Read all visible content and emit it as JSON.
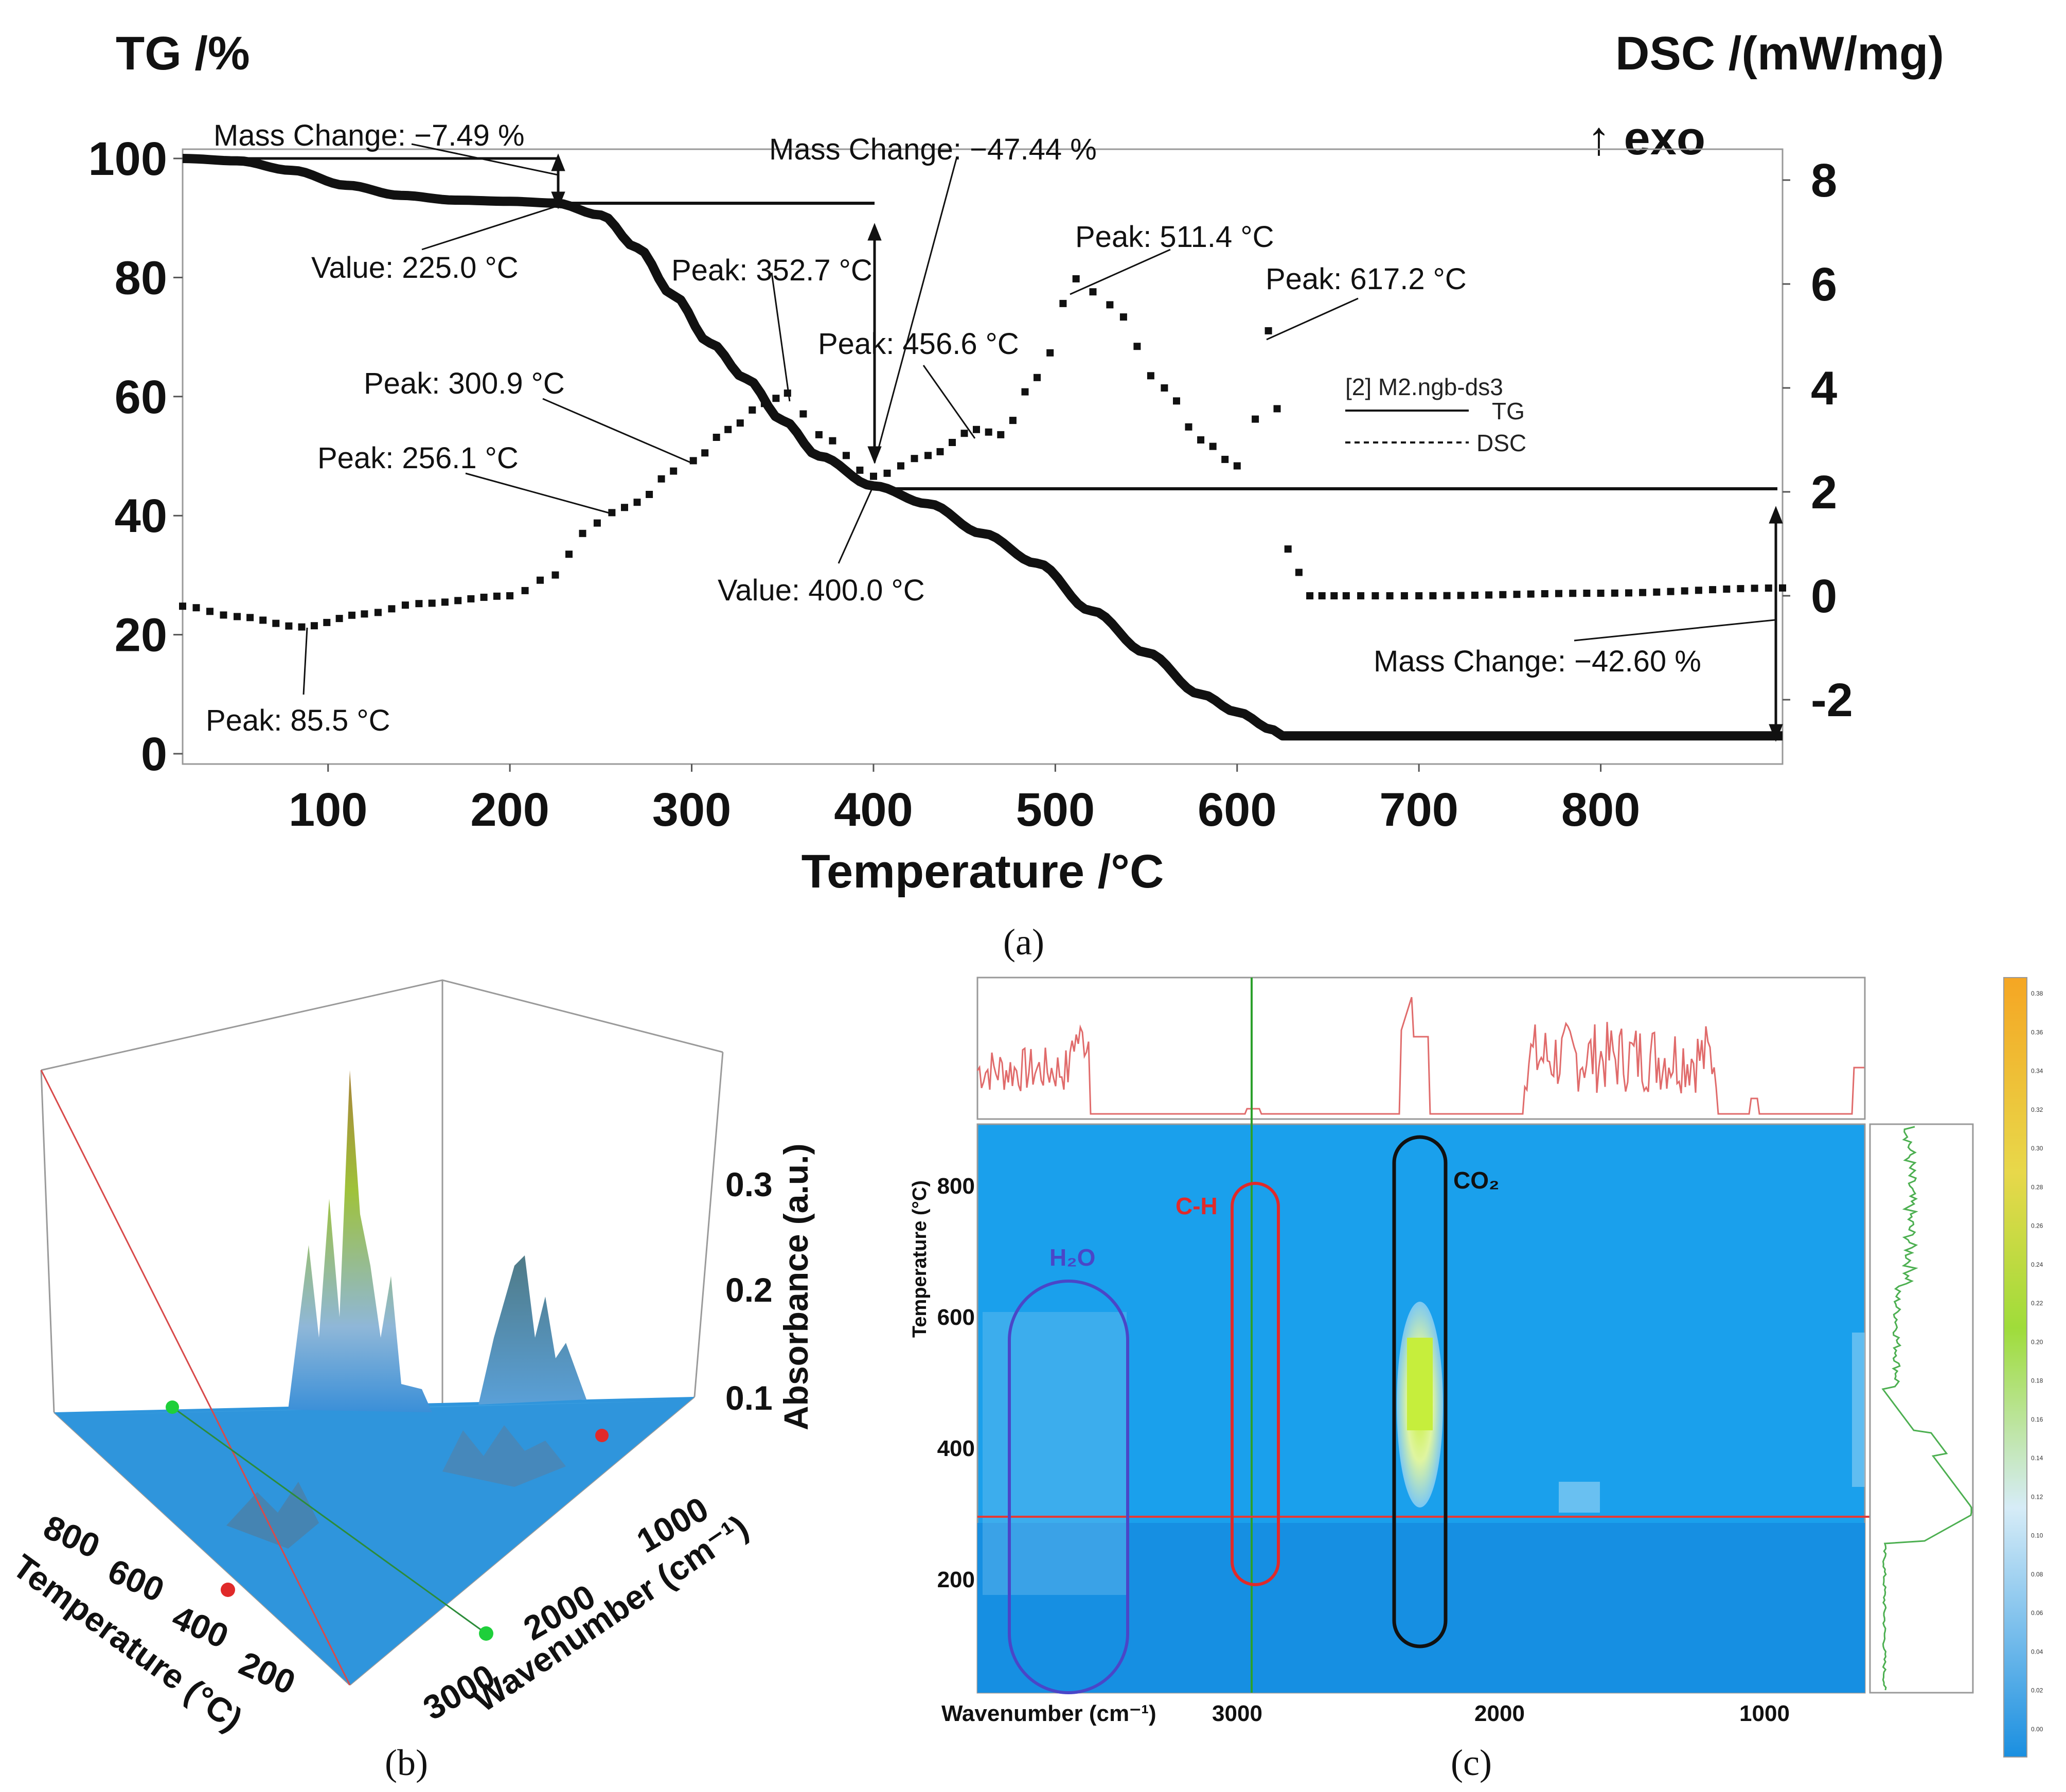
{
  "chart_data": [
    {
      "panel": "(a)",
      "type": "line",
      "xlabel": "Temperature /°C",
      "ylabel_left": "TG /%",
      "ylabel_right": "DSC /(mW/mg)",
      "exo_label": "↑ exo",
      "xlim": [
        20,
        900
      ],
      "ylim_left": [
        0,
        100
      ],
      "ylim_right": [
        -3,
        9
      ],
      "x_ticks": [
        100,
        200,
        300,
        400,
        500,
        600,
        700,
        800
      ],
      "y_ticks_left": [
        0,
        20,
        40,
        60,
        80,
        100
      ],
      "y_ticks_right": [
        -2,
        0,
        2,
        4,
        6,
        8
      ],
      "legend": {
        "file": "[2] M2.ngb-ds3",
        "entries": [
          "TG",
          "DSC"
        ],
        "placement": "right"
      },
      "series": [
        {
          "name": "TG",
          "axis": "left",
          "style": "solid",
          "x": [
            20,
            50,
            80,
            110,
            140,
            170,
            200,
            225,
            250,
            270,
            290,
            310,
            330,
            350,
            370,
            400,
            430,
            460,
            490,
            520,
            550,
            580,
            600,
            620,
            625,
            700,
            800,
            900
          ],
          "y": [
            100,
            99.6,
            98,
            95.5,
            93.8,
            93,
            92.8,
            92.5,
            90.5,
            85,
            77,
            69,
            63,
            56,
            50,
            45,
            42,
            37,
            32,
            24,
            17,
            10,
            7,
            4,
            3,
            3,
            3,
            3
          ]
        },
        {
          "name": "DSC",
          "axis": "right",
          "style": "dotted",
          "x": [
            20,
            50,
            85.5,
            120,
            150,
            200,
            225,
            240,
            256.1,
            270,
            290,
            300.9,
            320,
            340,
            352.7,
            370,
            400,
            430,
            456.6,
            470,
            490,
            511.4,
            530,
            560,
            580,
            600,
            610,
            617.2,
            622,
            628,
            640,
            660,
            700,
            800,
            900
          ],
          "y": [
            -0.2,
            -0.4,
            -0.6,
            -0.35,
            -0.15,
            0,
            0.4,
            1.2,
            1.6,
            1.8,
            2.4,
            2.6,
            3.2,
            3.7,
            3.9,
            3.1,
            2.3,
            2.7,
            3.2,
            3.1,
            4.2,
            6.1,
            5.6,
            4.0,
            3.0,
            2.5,
            3.4,
            5.1,
            3.6,
            0.9,
            0,
            0,
            0,
            0.05,
            0.15
          ]
        }
      ],
      "annotations": [
        {
          "text": "Mass Change: −7.49 %"
        },
        {
          "text": "Value: 225.0 °C"
        },
        {
          "text": "Mass Change: −47.44 %"
        },
        {
          "text": "Peak: 352.7 °C"
        },
        {
          "text": "Peak: 300.9 °C"
        },
        {
          "text": "Peak: 256.1 °C"
        },
        {
          "text": "Peak: 456.6 °C"
        },
        {
          "text": "Peak: 511.4 °C"
        },
        {
          "text": "Peak: 617.2 °C"
        },
        {
          "text": "Value: 400.0 °C"
        },
        {
          "text": "Mass Change: −42.60 %"
        },
        {
          "text": "Peak: 85.5 °C"
        }
      ],
      "caption": "(a)"
    },
    {
      "panel": "(b)",
      "type": "surface",
      "xlabel": "Temperature (°C)",
      "ylabel": "Wavenumber (cm⁻¹)",
      "zlabel": "Absorbance (a.u.)",
      "temperature_ticks": [
        "800",
        "600",
        "400",
        "200"
      ],
      "wavenumber_ticks": [
        "1000",
        "2000",
        "3000"
      ],
      "absorbance_ticks": [
        "0.3",
        "0.2",
        "0.1"
      ],
      "caption": "(b)"
    },
    {
      "panel": "(c)",
      "type": "heatmap",
      "xlabel": "Wavenumber (cm⁻¹)",
      "ylabel": "Temperature (°C)",
      "x_ticks": [
        "3000",
        "2000",
        "1000"
      ],
      "y_ticks": [
        "800",
        "600",
        "400",
        "200"
      ],
      "region_labels": [
        {
          "text": "H₂O",
          "color": "#4a46c8"
        },
        {
          "text": "C-H",
          "color": "#e02a2a"
        },
        {
          "text": "CO₂",
          "color": "#111111"
        }
      ],
      "colorbar_ticks": [
        "0.38",
        "0.36",
        "0.34",
        "0.32",
        "0.30",
        "0.28",
        "0.26",
        "0.24",
        "0.22",
        "0.20",
        "0.18",
        "0.16",
        "0.14",
        "0.12",
        "0.10",
        "0.08",
        "0.06",
        "0.04",
        "0.02",
        "0.00"
      ],
      "colors": {
        "map_bg": "#1aa0ec",
        "spectrum": "#e06b6b",
        "profile": "#4caf50",
        "marker_v": "#2ca02c",
        "marker_h": "#e53935"
      },
      "caption": "(c)"
    }
  ]
}
